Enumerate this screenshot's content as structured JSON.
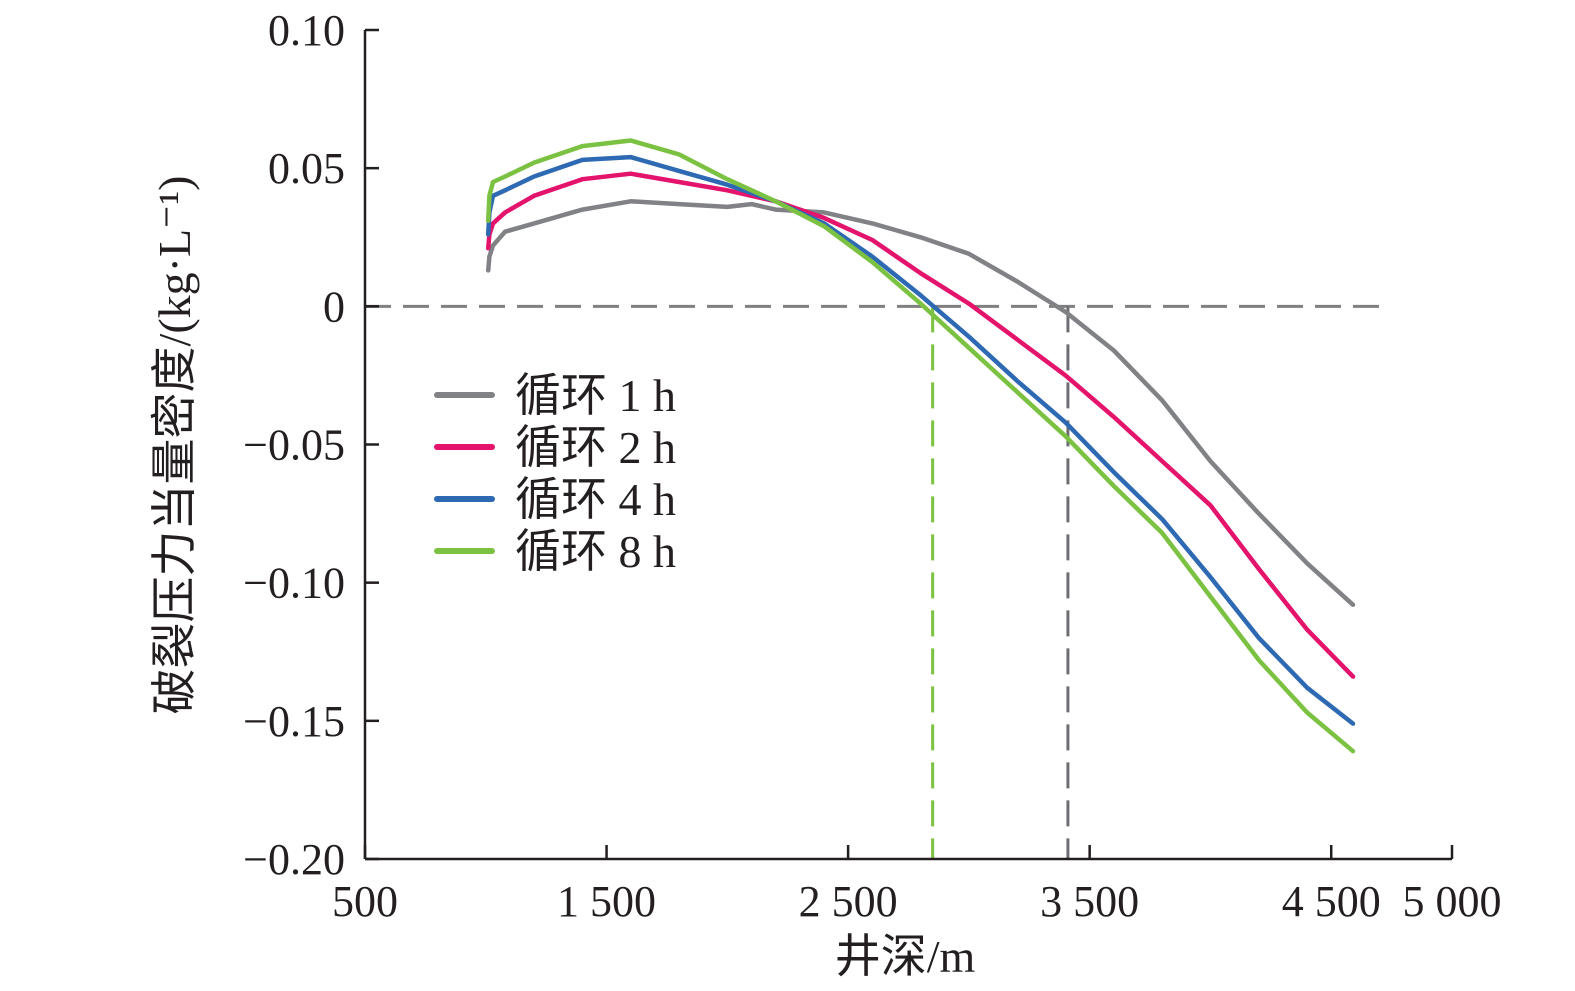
{
  "chart_data": {
    "type": "line",
    "title": "",
    "xlabel": "井深/m",
    "ylabel": "破裂压力当量密度/(kg·L⁻¹)",
    "xlim": [
      500,
      5000
    ],
    "ylim": [
      -0.2,
      0.1
    ],
    "x_ticks": [
      500,
      1500,
      2500,
      3500,
      4500,
      5000
    ],
    "x_tick_labels": [
      "500",
      "1 500",
      "2 500",
      "3 500",
      "4 500",
      "5 000"
    ],
    "y_ticks": [
      0.1,
      0.05,
      0,
      -0.05,
      -0.1,
      -0.15,
      -0.2
    ],
    "y_tick_labels": [
      "0.10",
      "0.05",
      "0",
      "−0.05",
      "−0.10",
      "−0.15",
      "−0.20"
    ],
    "grid": false,
    "legend_position": "center-left",
    "reference_lines": [
      {
        "orientation": "horizontal",
        "y": 0,
        "x_range": [
          500,
          5000
        ],
        "color": "#7f7f7f"
      },
      {
        "orientation": "vertical",
        "x": 2850,
        "y_range": [
          -0.2,
          0
        ],
        "color": "#7cc242"
      },
      {
        "orientation": "vertical",
        "x": 3410,
        "y_range": [
          -0.2,
          0
        ],
        "color": "#6d6e71"
      }
    ],
    "series": [
      {
        "name": "循环 1 h",
        "color": "#818285",
        "x": [
          1010,
          1015,
          1030,
          1080,
          1200,
          1400,
          1600,
          1800,
          1900,
          2000,
          2100,
          2200,
          2400,
          2600,
          2800,
          3000,
          3200,
          3400,
          3600,
          3800,
          4000,
          4200,
          4400,
          4590
        ],
        "values": [
          0.013,
          0.018,
          0.022,
          0.027,
          0.03,
          0.035,
          0.038,
          0.037,
          0.0365,
          0.036,
          0.037,
          0.035,
          0.034,
          0.03,
          0.025,
          0.019,
          0.009,
          -0.002,
          -0.016,
          -0.034,
          -0.056,
          -0.075,
          -0.093,
          -0.108
        ]
      },
      {
        "name": "循环 2 h",
        "color": "#e4136b",
        "x": [
          1010,
          1015,
          1030,
          1080,
          1200,
          1400,
          1600,
          1800,
          2000,
          2200,
          2400,
          2600,
          2800,
          3000,
          3200,
          3400,
          3600,
          3800,
          4000,
          4200,
          4400,
          4590
        ],
        "values": [
          0.021,
          0.026,
          0.03,
          0.034,
          0.04,
          0.046,
          0.048,
          0.045,
          0.042,
          0.038,
          0.032,
          0.024,
          0.012,
          0.001,
          -0.012,
          -0.025,
          -0.04,
          -0.056,
          -0.072,
          -0.095,
          -0.117,
          -0.134
        ]
      },
      {
        "name": "循环 4 h",
        "color": "#2e6ab3",
        "x": [
          1010,
          1015,
          1030,
          1080,
          1200,
          1400,
          1600,
          1800,
          2000,
          2200,
          2400,
          2600,
          2800,
          3000,
          3200,
          3400,
          3600,
          3800,
          4000,
          4200,
          4400,
          4590
        ],
        "values": [
          0.026,
          0.034,
          0.04,
          0.042,
          0.047,
          0.053,
          0.054,
          0.049,
          0.044,
          0.038,
          0.03,
          0.018,
          0.004,
          -0.011,
          -0.027,
          -0.042,
          -0.06,
          -0.077,
          -0.098,
          -0.12,
          -0.138,
          -0.151
        ]
      },
      {
        "name": "循环 8 h",
        "color": "#7cc242",
        "x": [
          1010,
          1015,
          1030,
          1080,
          1200,
          1400,
          1600,
          1800,
          2000,
          2200,
          2400,
          2600,
          2800,
          3000,
          3200,
          3400,
          3600,
          3800,
          4000,
          4200,
          4400,
          4590
        ],
        "values": [
          0.031,
          0.04,
          0.045,
          0.047,
          0.052,
          0.058,
          0.06,
          0.055,
          0.046,
          0.038,
          0.029,
          0.016,
          0.001,
          -0.015,
          -0.031,
          -0.047,
          -0.065,
          -0.082,
          -0.105,
          -0.128,
          -0.147,
          -0.161
        ]
      }
    ]
  }
}
